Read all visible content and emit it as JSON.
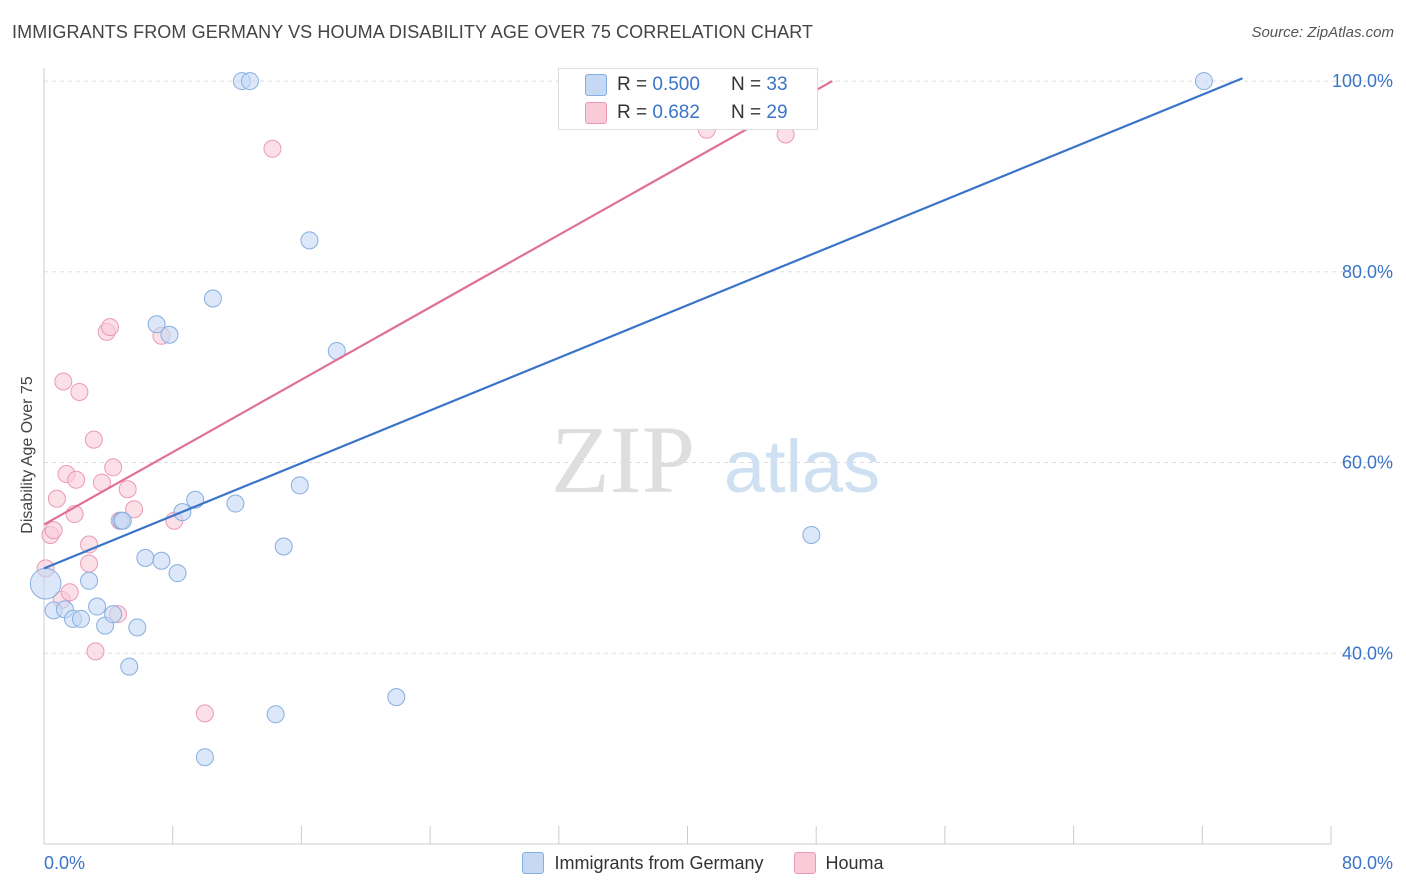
{
  "title": "IMMIGRANTS FROM GERMANY VS HOUMA DISABILITY AGE OVER 75 CORRELATION CHART",
  "source": "Source: ZipAtlas.com",
  "watermark": {
    "zip": "ZIP",
    "atlas": "atlas"
  },
  "legend_stats": [
    {
      "r_label": "R = ",
      "r_value": "0.500",
      "n_label": "N = ",
      "n_value": "33"
    },
    {
      "r_label": "R = ",
      "r_value": "0.682",
      "n_label": "N = ",
      "n_value": "29"
    }
  ],
  "colors": {
    "blue_fill": "#c5d9f5",
    "blue_stroke": "#86aee0",
    "blue_line": "#3a74c9",
    "pink_fill": "#f9cbd9",
    "pink_stroke": "#eb9ab6",
    "pink_line": "#e07097",
    "axis_text": "#3a74c9",
    "grid": "#dddddd"
  },
  "chart_data": {
    "type": "scatter",
    "title": "IMMIGRANTS FROM GERMANY VS HOUMA DISABILITY AGE OVER 75 CORRELATION CHART",
    "xlabel": "",
    "ylabel": "Disability Age Over 75",
    "xlim": [
      0,
      80
    ],
    "ylim": [
      20,
      102
    ],
    "x_tick_labels": [
      "0.0%",
      "80.0%"
    ],
    "y_ticks": [
      40,
      60,
      80,
      100
    ],
    "y_tick_labels": [
      "40.0%",
      "60.0%",
      "80.0%",
      "100.0%"
    ],
    "legend_position": "bottom",
    "series": [
      {
        "name": "Immigrants from Germany",
        "color": "#3a74c9",
        "r": 0.5,
        "n": 33,
        "trendline": {
          "x": [
            0,
            74.5
          ],
          "y": [
            48.9,
            100.3
          ]
        },
        "points": [
          [
            0.1,
            47.3,
            1.8
          ],
          [
            0.6,
            44.5,
            1
          ],
          [
            1.3,
            44.6,
            1
          ],
          [
            1.8,
            43.6,
            1
          ],
          [
            2.3,
            43.6,
            1
          ],
          [
            2.8,
            47.6,
            1
          ],
          [
            3.3,
            44.9,
            1
          ],
          [
            3.8,
            42.9,
            1
          ],
          [
            4.3,
            44.1,
            1
          ],
          [
            4.8,
            53.9,
            1
          ],
          [
            5.8,
            42.7,
            1
          ],
          [
            5.3,
            38.6,
            1
          ],
          [
            6.3,
            50.0,
            1
          ],
          [
            7.3,
            49.7,
            1
          ],
          [
            8.3,
            48.4,
            1
          ],
          [
            8.6,
            54.8,
            1
          ],
          [
            9.4,
            56.1,
            1
          ],
          [
            10.0,
            29.1,
            1
          ],
          [
            11.9,
            55.7,
            1
          ],
          [
            14.4,
            33.6,
            1
          ],
          [
            14.9,
            51.2,
            1
          ],
          [
            15.9,
            57.6,
            1
          ],
          [
            16.5,
            83.3,
            1
          ],
          [
            18.2,
            71.7,
            1
          ],
          [
            21.9,
            35.4,
            1
          ],
          [
            47.7,
            52.4,
            1
          ],
          [
            12.3,
            100.0,
            1
          ],
          [
            12.8,
            100.0,
            1
          ],
          [
            72.1,
            100.0,
            1
          ],
          [
            10.5,
            77.2,
            1
          ],
          [
            7.0,
            74.5,
            1
          ],
          [
            7.8,
            73.4,
            1
          ],
          [
            4.9,
            53.9,
            1
          ]
        ]
      },
      {
        "name": "Houma",
        "color": "#e07097",
        "r": 0.682,
        "n": 29,
        "trendline": {
          "x": [
            0,
            49
          ],
          "y": [
            53.5,
            100
          ]
        },
        "points": [
          [
            0.1,
            48.9,
            1
          ],
          [
            0.4,
            52.4,
            1
          ],
          [
            0.6,
            52.9,
            1
          ],
          [
            0.8,
            56.2,
            1
          ],
          [
            1.1,
            45.6,
            1
          ],
          [
            1.2,
            68.5,
            1
          ],
          [
            1.4,
            58.8,
            1
          ],
          [
            1.6,
            46.4,
            1
          ],
          [
            1.9,
            54.6,
            1
          ],
          [
            2.0,
            58.2,
            1
          ],
          [
            2.2,
            67.4,
            1
          ],
          [
            2.8,
            49.4,
            1
          ],
          [
            2.8,
            51.4,
            1
          ],
          [
            3.1,
            62.4,
            1
          ],
          [
            3.2,
            40.2,
            1
          ],
          [
            3.6,
            57.9,
            1
          ],
          [
            3.9,
            73.7,
            1
          ],
          [
            4.1,
            74.2,
            1
          ],
          [
            4.3,
            59.5,
            1
          ],
          [
            4.6,
            44.1,
            1
          ],
          [
            5.2,
            57.2,
            1
          ],
          [
            5.6,
            55.1,
            1
          ],
          [
            7.3,
            73.3,
            1
          ],
          [
            8.1,
            53.9,
            1
          ],
          [
            10.0,
            33.7,
            1
          ],
          [
            14.2,
            92.9,
            1
          ],
          [
            41.2,
            94.9,
            1
          ],
          [
            46.1,
            94.4,
            1
          ],
          [
            4.7,
            53.9,
            1
          ]
        ]
      }
    ]
  }
}
